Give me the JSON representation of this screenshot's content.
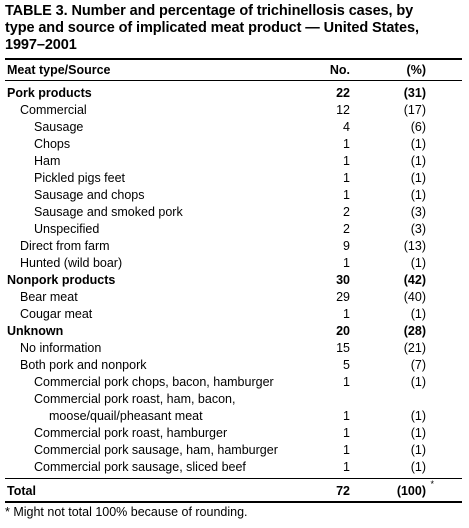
{
  "title_lines": [
    "TABLE 3.  Number and percentage of trichinellosis cases, by",
    "type and source of implicated meat product — United States,",
    "1997–2001"
  ],
  "headers": {
    "label": "Meat type/Source",
    "no": "No.",
    "pct": "(%)"
  },
  "rows": [
    {
      "label": "Pork products",
      "no": "22",
      "pct": "(31)",
      "level": 0,
      "bold": true
    },
    {
      "label": "Commercial",
      "no": "12",
      "pct": "(17)",
      "level": 1
    },
    {
      "label": "Sausage",
      "no": "4",
      "pct": "(6)",
      "level": 2
    },
    {
      "label": "Chops",
      "no": "1",
      "pct": "(1)",
      "level": 2
    },
    {
      "label": "Ham",
      "no": "1",
      "pct": "(1)",
      "level": 2
    },
    {
      "label": "Pickled pigs feet",
      "no": "1",
      "pct": "(1)",
      "level": 2
    },
    {
      "label": "Sausage and chops",
      "no": "1",
      "pct": "(1)",
      "level": 2
    },
    {
      "label": "Sausage and smoked pork",
      "no": "2",
      "pct": "(3)",
      "level": 2
    },
    {
      "label": "Unspecified",
      "no": "2",
      "pct": "(3)",
      "level": 2
    },
    {
      "label": "Direct from farm",
      "no": "9",
      "pct": "(13)",
      "level": 1
    },
    {
      "label": "Hunted (wild boar)",
      "no": "1",
      "pct": "(1)",
      "level": 1
    },
    {
      "label": "Nonpork products",
      "no": "30",
      "pct": "(42)",
      "level": 0,
      "bold": true
    },
    {
      "label": "Bear meat",
      "no": "29",
      "pct": "(40)",
      "level": 1
    },
    {
      "label": "Cougar meat",
      "no": "1",
      "pct": "(1)",
      "level": 1
    },
    {
      "label": "Unknown",
      "no": "20",
      "pct": "(28)",
      "level": 0,
      "bold": true
    },
    {
      "label": "No information",
      "no": "15",
      "pct": "(21)",
      "level": 1
    },
    {
      "label": "Both pork and nonpork",
      "no": "5",
      "pct": "(7)",
      "level": 1
    },
    {
      "label": "Commercial pork chops, bacon, hamburger",
      "no": "1",
      "pct": "(1)",
      "level": 2
    },
    {
      "label": "Commercial pork roast, ham, bacon,",
      "no": "",
      "pct": "",
      "level": 2
    },
    {
      "label": "moose/quail/pheasant meat",
      "no": "1",
      "pct": "(1)",
      "level": 3
    },
    {
      "label": "Commercial pork roast, hamburger",
      "no": "1",
      "pct": "(1)",
      "level": 2
    },
    {
      "label": "Commercial pork sausage, ham, hamburger",
      "no": "1",
      "pct": "(1)",
      "level": 2
    },
    {
      "label": "Commercial pork sausage, sliced beef",
      "no": "1",
      "pct": "(1)",
      "level": 2
    }
  ],
  "total": {
    "label": "Total",
    "no": "72",
    "pct": "(100)",
    "mark": "*"
  },
  "footnote": "* Might not total 100% because of rounding."
}
